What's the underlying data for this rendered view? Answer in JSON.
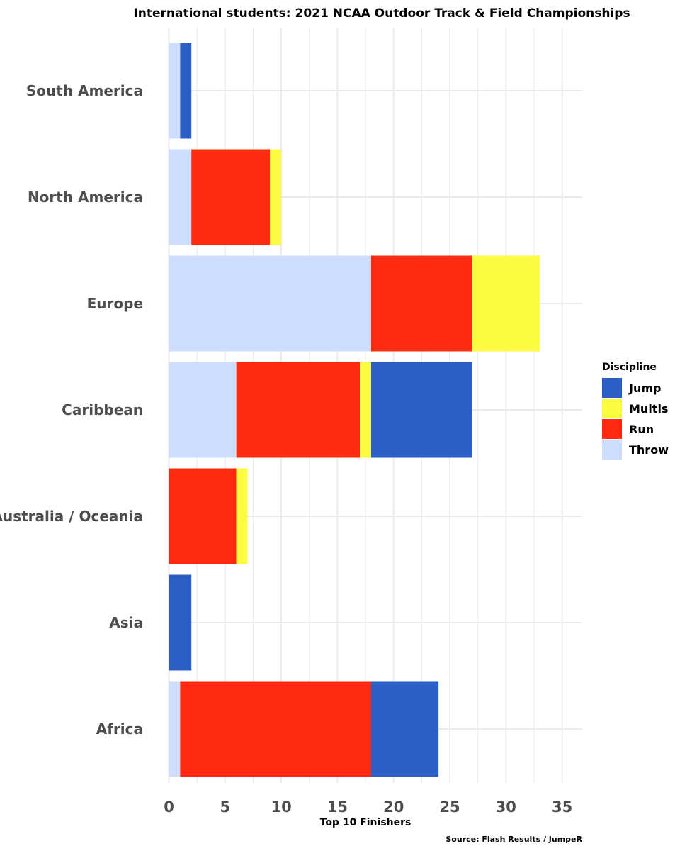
{
  "chart_data": {
    "type": "bar",
    "orientation": "horizontal",
    "stacked": true,
    "title": "International students: 2021 NCAA Outdoor Track & Field Championships",
    "xlabel": "Top 10 Finishers",
    "ylabel": "",
    "caption": "Source: Flash Results / JumpeR",
    "xlim": [
      0,
      36.8
    ],
    "xticks": [
      0,
      5,
      10,
      15,
      20,
      25,
      30,
      35
    ],
    "grid": true,
    "legend_position": "right",
    "legend_title": "Discipline",
    "categories": [
      "South America",
      "North America",
      "Europe",
      "Caribbean",
      "Australia / Oceania",
      "Asia",
      "Africa"
    ],
    "series": [
      {
        "name": "Throw",
        "color": "#ccddfd",
        "values": [
          1,
          2,
          18,
          6,
          0,
          0,
          1
        ]
      },
      {
        "name": "Run",
        "color": "#ff2a10",
        "values": [
          0,
          7,
          9,
          11,
          6,
          0,
          17
        ]
      },
      {
        "name": "Multis",
        "color": "#fbfb42",
        "values": [
          0,
          1,
          6,
          1,
          1,
          0,
          0
        ]
      },
      {
        "name": "Jump",
        "color": "#2b5fc6",
        "values": [
          1,
          0,
          0,
          9,
          0,
          2,
          6
        ]
      }
    ],
    "legend_order": [
      "Jump",
      "Multis",
      "Run",
      "Throw"
    ]
  }
}
